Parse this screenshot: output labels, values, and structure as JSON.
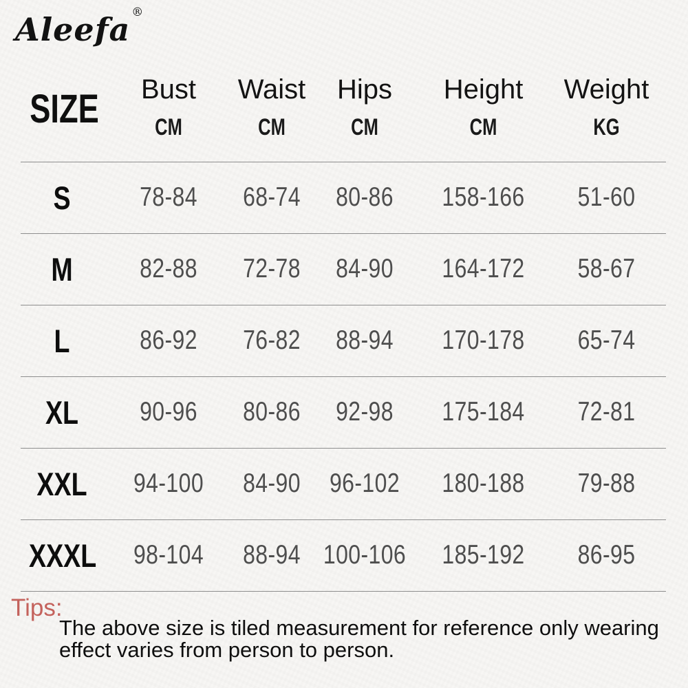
{
  "brand": {
    "name": "Aleefa",
    "registered_mark": "®"
  },
  "table": {
    "size_label": "SIZE",
    "columns": [
      {
        "label": "Bust",
        "unit": "CM"
      },
      {
        "label": "Waist",
        "unit": "CM"
      },
      {
        "label": "Hips",
        "unit": "CM"
      },
      {
        "label": "Height",
        "unit": "CM"
      },
      {
        "label": "Weight",
        "unit": "KG"
      }
    ],
    "rows": [
      {
        "size": "S",
        "bust": "78-84",
        "waist": "68-74",
        "hips": "80-86",
        "height": "158-166",
        "weight": "51-60"
      },
      {
        "size": "M",
        "bust": "82-88",
        "waist": "72-78",
        "hips": "84-90",
        "height": "164-172",
        "weight": "58-67"
      },
      {
        "size": "L",
        "bust": "86-92",
        "waist": "76-82",
        "hips": "88-94",
        "height": "170-178",
        "weight": "65-74"
      },
      {
        "size": "XL",
        "bust": "90-96",
        "waist": "80-86",
        "hips": "92-98",
        "height": "175-184",
        "weight": "72-81"
      },
      {
        "size": "XXL",
        "bust": "94-100",
        "waist": "84-90",
        "hips": "96-102",
        "height": "180-188",
        "weight": "79-88"
      },
      {
        "size": "XXXL",
        "bust": "98-104",
        "waist": "88-94",
        "hips": "100-106",
        "height": "185-192",
        "weight": "86-95"
      }
    ]
  },
  "tips": {
    "label": "Tips:",
    "lines": [
      "The above size is tiled measurement for reference only wearing",
      "effect varies from person to person."
    ]
  },
  "colors": {
    "bg": "#f7f6f4",
    "text": "#141414",
    "numbers": "#4e4e4e",
    "rule": "#8d8d8d",
    "tips": "#c4625c"
  }
}
